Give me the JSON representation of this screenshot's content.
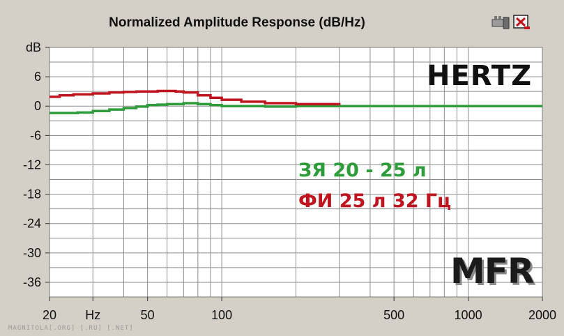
{
  "title": "Normalized Amplitude Response (dB/Hz)",
  "brand": "HERTZ",
  "watermark": "MAGNITOLA[.ORG] [.RU] [.NET]",
  "mfr_label": "MFR",
  "toolbar": {
    "icons": [
      "speaker-icon",
      "close-app-icon"
    ]
  },
  "legend": {
    "green": "ЗЯ 20 - 25 л",
    "red": "ФИ 25 л 32 Гц"
  },
  "colors": {
    "plot_bg": "#ffffff",
    "grid": "#8c8c8c",
    "green": "#2e9c3a",
    "red": "#c0141e",
    "frame": "#d4d0c8"
  },
  "chart_data": {
    "type": "line",
    "title": "Normalized Amplitude Response (dB/Hz)",
    "x_scale": "log",
    "xlim": [
      20,
      2000
    ],
    "ylim": [
      -39,
      12
    ],
    "y_ticks": [
      {
        "label": "dB",
        "value": 12
      },
      {
        "label": "6",
        "value": 6
      },
      {
        "label": "0",
        "value": 0
      },
      {
        "label": "-6",
        "value": -6
      },
      {
        "label": "-12",
        "value": -12
      },
      {
        "label": "-18",
        "value": -18
      },
      {
        "label": "-24",
        "value": -24
      },
      {
        "label": "-30",
        "value": -30
      },
      {
        "label": "-36",
        "value": -36
      }
    ],
    "x_ticks": [
      {
        "label": "20",
        "value": 20
      },
      {
        "label": "Hz",
        "value": 30
      },
      {
        "label": "50",
        "value": 50
      },
      {
        "label": "100",
        "value": 100
      },
      {
        "label": "500",
        "value": 500
      },
      {
        "label": "1000",
        "value": 1000
      },
      {
        "label": "2000",
        "value": 2000
      }
    ],
    "x_grid": [
      20,
      30,
      40,
      50,
      60,
      70,
      80,
      90,
      100,
      200,
      300,
      400,
      500,
      600,
      700,
      800,
      900,
      1000,
      2000
    ],
    "y_grid": [
      12,
      9,
      6,
      3,
      0,
      -3,
      -6,
      -9,
      -12,
      -15,
      -18,
      -21,
      -24,
      -27,
      -30,
      -33,
      -36,
      -39
    ],
    "series": [
      {
        "name": "ЗЯ 20 - 25 л",
        "color": "#2e9c3a",
        "x": [
          20,
          26,
          30,
          35,
          40,
          45,
          50,
          55,
          60,
          70,
          80,
          90,
          100,
          150,
          200,
          300,
          500,
          1000,
          2000
        ],
        "y": [
          -1.4,
          -1.3,
          -1.0,
          -0.7,
          -0.4,
          -0.1,
          0.2,
          0.3,
          0.4,
          0.6,
          0.4,
          0.2,
          0.0,
          -0.1,
          0.0,
          0.0,
          0.0,
          0.0,
          0.0
        ]
      },
      {
        "name": "ФИ 25 л 32 Гц",
        "color": "#c0141e",
        "x": [
          20,
          22,
          25,
          30,
          35,
          40,
          45,
          50,
          55,
          60,
          65,
          70,
          80,
          90,
          100,
          120,
          150,
          200,
          300
        ],
        "y": [
          1.9,
          2.2,
          2.4,
          2.6,
          2.8,
          2.9,
          3.0,
          3.0,
          3.1,
          3.1,
          3.0,
          2.8,
          2.2,
          1.7,
          1.3,
          0.9,
          0.6,
          0.4,
          0.2
        ]
      }
    ]
  }
}
